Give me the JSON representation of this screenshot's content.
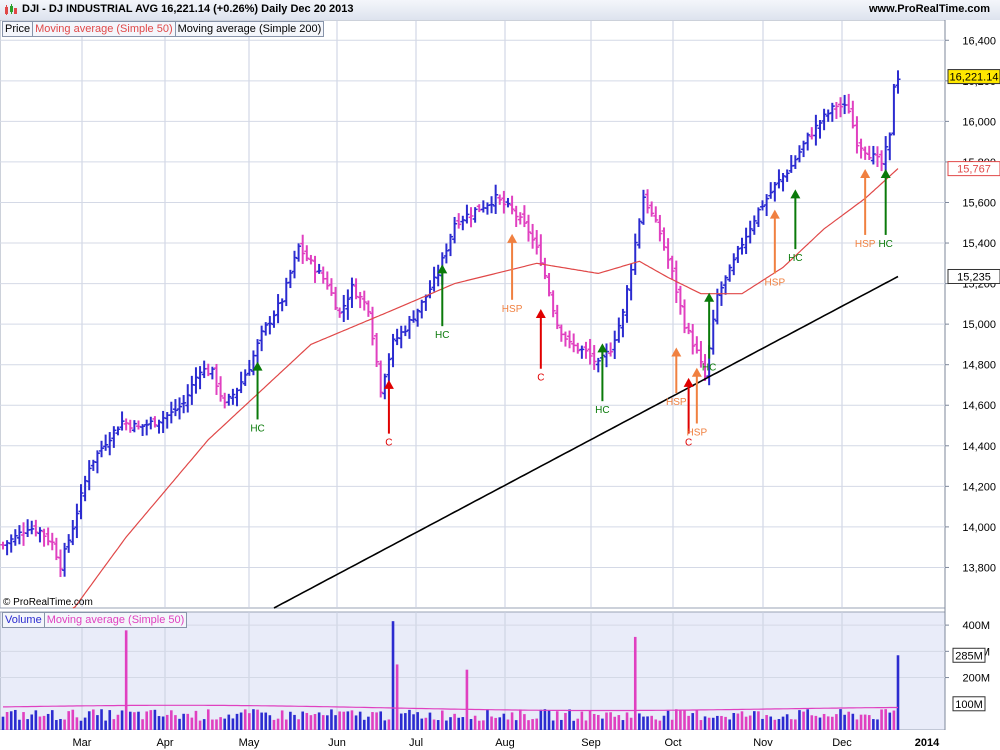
{
  "header": {
    "title": "DJI - DJ INDUSTRIAL AVG    16,221.14 (+0.26%)    Daily  Dec 20 2013",
    "site": "www.ProRealTime.com"
  },
  "legend_price": {
    "price": "Price",
    "ma50": "Moving average (Simple 50)",
    "ma200": "Moving average (Simple 200)"
  },
  "legend_volume": {
    "volume": "Volume",
    "vol_ma": "Moving average (Simple 50)"
  },
  "copyright": "© ProRealTime.com",
  "colors": {
    "up": "#2b2bd0",
    "down": "#e040c0",
    "ma50": "#e04848",
    "ma200": "#000000",
    "hc": "#0a7a0a",
    "c": "#e00000",
    "hsp": "#f08040",
    "price_bg": "#ffffff",
    "volume_bg": "#e9ecf9"
  },
  "chart_data": {
    "type": "bar",
    "x_labels": [
      "Mar",
      "Apr",
      "May",
      "Jun",
      "Jul",
      "Aug",
      "Sep",
      "Oct",
      "Nov",
      "Dec",
      "2014"
    ],
    "price_axis": {
      "ylim": [
        13600,
        16500
      ],
      "ticks": [
        "13,800",
        "14,000",
        "14,200",
        "14,400",
        "14,600",
        "14,800",
        "15,000",
        "15,200",
        "15,400",
        "15,600",
        "15,800",
        "16,000",
        "16,200",
        "16,400"
      ]
    },
    "price_tags": [
      {
        "label": "16,221.14",
        "value": 16221,
        "kind": "last"
      },
      {
        "label": "15,767",
        "value": 15767,
        "kind": "ma50"
      },
      {
        "label": "15,235",
        "value": 15235,
        "kind": "ma200"
      }
    ],
    "price_anchors": [
      [
        0,
        13910
      ],
      [
        3,
        13950
      ],
      [
        6,
        14000
      ],
      [
        9,
        13980
      ],
      [
        12,
        13920
      ],
      [
        14,
        13810
      ],
      [
        17,
        14000
      ],
      [
        21,
        14300
      ],
      [
        25,
        14420
      ],
      [
        29,
        14520
      ],
      [
        33,
        14490
      ],
      [
        37,
        14520
      ],
      [
        41,
        14560
      ],
      [
        44,
        14610
      ],
      [
        48,
        14780
      ],
      [
        51,
        14760
      ],
      [
        54,
        14600
      ],
      [
        57,
        14680
      ],
      [
        60,
        14790
      ],
      [
        63,
        14950
      ],
      [
        68,
        15120
      ],
      [
        72,
        15380
      ],
      [
        75,
        15300
      ],
      [
        79,
        15200
      ],
      [
        82,
        15050
      ],
      [
        85,
        15180
      ],
      [
        89,
        15080
      ],
      [
        92,
        14680
      ],
      [
        95,
        14910
      ],
      [
        98,
        14980
      ],
      [
        102,
        15100
      ],
      [
        106,
        15250
      ],
      [
        110,
        15500
      ],
      [
        115,
        15560
      ],
      [
        120,
        15620
      ],
      [
        124,
        15560
      ],
      [
        128,
        15460
      ],
      [
        131,
        15320
      ],
      [
        135,
        15000
      ],
      [
        138,
        14900
      ],
      [
        142,
        14860
      ],
      [
        145,
        14800
      ],
      [
        148,
        14880
      ],
      [
        151,
        15050
      ],
      [
        154,
        15400
      ],
      [
        156,
        15630
      ],
      [
        160,
        15450
      ],
      [
        163,
        15250
      ],
      [
        166,
        15000
      ],
      [
        169,
        14860
      ],
      [
        171,
        14740
      ],
      [
        174,
        15140
      ],
      [
        177,
        15260
      ],
      [
        180,
        15400
      ],
      [
        184,
        15560
      ],
      [
        188,
        15680
      ],
      [
        192,
        15780
      ],
      [
        196,
        15920
      ],
      [
        200,
        16020
      ],
      [
        203,
        16080
      ],
      [
        206,
        16060
      ],
      [
        208,
        15900
      ],
      [
        211,
        15840
      ],
      [
        214,
        15790
      ],
      [
        216,
        15920
      ],
      [
        217,
        16180
      ],
      [
        218,
        16221
      ]
    ],
    "ma50_anchors": [
      [
        17,
        13590
      ],
      [
        30,
        13950
      ],
      [
        50,
        14430
      ],
      [
        75,
        14900
      ],
      [
        95,
        15070
      ],
      [
        110,
        15200
      ],
      [
        130,
        15300
      ],
      [
        145,
        15250
      ],
      [
        155,
        15310
      ],
      [
        162,
        15230
      ],
      [
        170,
        15150
      ],
      [
        180,
        15150
      ],
      [
        190,
        15280
      ],
      [
        200,
        15470
      ],
      [
        210,
        15620
      ],
      [
        218,
        15767
      ]
    ],
    "ma200_anchors": [
      [
        66,
        13600
      ],
      [
        218,
        15235
      ]
    ],
    "volume_axis": {
      "ylim": [
        0,
        450
      ],
      "ticks": [
        "200M",
        "300M",
        "400M"
      ]
    },
    "volume_tags": [
      {
        "label": "285M",
        "value": 285
      },
      {
        "label": "100M",
        "value": 100
      }
    ],
    "volume_spikes": [
      {
        "i": 30,
        "v": 380,
        "dir": "down"
      },
      {
        "i": 95,
        "v": 415,
        "dir": "up"
      },
      {
        "i": 96,
        "v": 250,
        "dir": "down"
      },
      {
        "i": 154,
        "v": 355,
        "dir": "down"
      },
      {
        "i": 113,
        "v": 230,
        "dir": "down"
      },
      {
        "i": 218,
        "v": 285,
        "dir": "up"
      },
      {
        "i": 218,
        "v": 285,
        "dir": "up"
      }
    ],
    "annotations": [
      {
        "text": "HC",
        "kind": "hc",
        "i": 62,
        "y_tip": 14810,
        "y_tail": 14530,
        "label_side": "below"
      },
      {
        "text": "C",
        "kind": "c",
        "i": 94,
        "y_tip": 14720,
        "y_tail": 14460,
        "label_side": "below"
      },
      {
        "text": "HC",
        "kind": "hc",
        "i": 107,
        "y_tip": 15290,
        "y_tail": 14990,
        "label_side": "below"
      },
      {
        "text": "HSP",
        "kind": "hsp",
        "i": 124,
        "y_tip": 15440,
        "y_tail": 15120,
        "label_side": "below"
      },
      {
        "text": "C",
        "kind": "c",
        "i": 131,
        "y_tip": 15070,
        "y_tail": 14780,
        "label_side": "below"
      },
      {
        "text": "HC",
        "kind": "hc",
        "i": 146,
        "y_tip": 14900,
        "y_tail": 14620,
        "label_side": "below"
      },
      {
        "text": "HSP",
        "kind": "hsp",
        "i": 164,
        "y_tip": 14880,
        "y_tail": 14660,
        "label_side": "below"
      },
      {
        "text": "C",
        "kind": "c",
        "i": 167,
        "y_tip": 14730,
        "y_tail": 14460,
        "label_side": "below"
      },
      {
        "text": "HSP",
        "kind": "hsp",
        "i": 169,
        "y_tip": 14780,
        "y_tail": 14510,
        "label_side": "below"
      },
      {
        "text": "HC",
        "kind": "hc",
        "i": 172,
        "y_tip": 15150,
        "y_tail": 14830,
        "label_side": "below"
      },
      {
        "text": "HSP",
        "kind": "hsp",
        "i": 188,
        "y_tip": 15560,
        "y_tail": 15250,
        "label_side": "below"
      },
      {
        "text": "HC",
        "kind": "hc",
        "i": 193,
        "y_tip": 15660,
        "y_tail": 15370,
        "label_side": "below"
      },
      {
        "text": "HSP",
        "kind": "hsp",
        "i": 210,
        "y_tip": 15760,
        "y_tail": 15440,
        "label_side": "below"
      },
      {
        "text": "HC",
        "kind": "hc",
        "i": 215,
        "y_tip": 15760,
        "y_tail": 15440,
        "label_side": "below"
      }
    ]
  }
}
